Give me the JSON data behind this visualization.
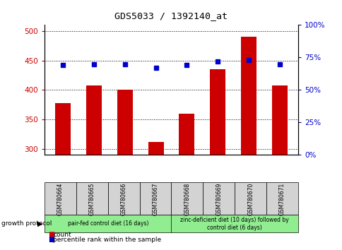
{
  "title": "GDS5033 / 1392140_at",
  "samples": [
    "GSM780664",
    "GSM780665",
    "GSM780666",
    "GSM780667",
    "GSM780668",
    "GSM780669",
    "GSM780670",
    "GSM780671"
  ],
  "counts": [
    378,
    408,
    400,
    312,
    360,
    435,
    490,
    408
  ],
  "percentile_ranks": [
    69,
    70,
    70,
    67,
    69,
    72,
    73,
    70
  ],
  "ylim_left": [
    290,
    510
  ],
  "ylim_right": [
    0,
    100
  ],
  "yticks_left": [
    300,
    350,
    400,
    450,
    500
  ],
  "yticks_right": [
    0,
    25,
    50,
    75,
    100
  ],
  "bar_color": "#cc0000",
  "dot_color": "#0000cc",
  "group1_label": "pair-fed control diet (16 days)",
  "group2_label": "zinc-deficient diet (10 days) followed by\ncontrol diet (6 days)",
  "group1_color": "#90ee90",
  "group2_color": "#90ee90",
  "sample_box_color": "#d3d3d3",
  "protocol_label": "growth protocol",
  "legend_count": "count",
  "legend_percentile": "percentile rank within the sample",
  "left_color": "#cc0000",
  "right_color": "#0000cc",
  "grid_color": "#000000",
  "bg_color": "#ffffff",
  "plot_bg": "#ffffff"
}
